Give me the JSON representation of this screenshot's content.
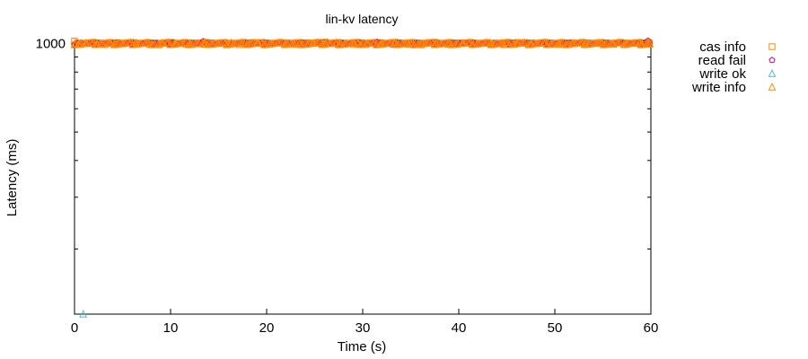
{
  "chart_data": {
    "type": "scatter",
    "title": "lin-kv latency",
    "xlabel": "Time (s)",
    "ylabel": "Latency (ms)",
    "xlim": [
      0,
      60
    ],
    "y_scale": "log",
    "ylim": [
      120,
      1100
    ],
    "x_ticks": [
      0,
      10,
      20,
      30,
      40,
      50,
      60
    ],
    "y_ticks": [
      1000
    ],
    "legend_position": "outside-top-right",
    "grid": false,
    "series": [
      {
        "name": "cas info",
        "marker": "square",
        "color": "#ff8c00",
        "band": [
          990,
          1010
        ],
        "x": [
          0.0,
          0.7,
          1.8,
          3.2,
          4.5,
          6.1,
          7.4,
          8.8,
          10.1,
          11.6,
          13.0,
          14.3,
          15.9,
          17.2,
          18.6,
          20.0,
          21.4,
          22.9,
          24.3,
          25.7,
          26.1,
          27.4,
          28.9,
          30.3,
          31.8,
          33.2,
          34.6,
          36.1,
          37.5,
          38.9,
          40.4,
          41.8,
          43.2,
          44.7,
          46.1,
          47.5,
          49.0,
          50.4,
          51.8,
          53.3,
          54.7,
          56.1,
          57.6,
          59.0,
          59.8
        ],
        "y": [
          1020,
          995,
          1005,
          992,
          1008,
          996,
          1003,
          990,
          1010,
          994,
          1006,
          998,
          1002,
          991,
          1009,
          997,
          1004,
          993,
          1007,
          999,
          1012,
          995,
          1005,
          992,
          1008,
          996,
          1003,
          990,
          1010,
          994,
          1006,
          998,
          1002,
          991,
          1009,
          997,
          1004,
          993,
          1007,
          999,
          1001,
          995,
          1005,
          992,
          1008
        ]
      },
      {
        "name": "read fail",
        "marker": "pentagon",
        "color": "#e0007a",
        "band": [
          993,
          1006
        ],
        "x": [
          0.3,
          1.5,
          2.9,
          4.2,
          5.8,
          7.1,
          8.5,
          9.9,
          11.3,
          12.7,
          13.4,
          14.9,
          16.3,
          17.8,
          19.2,
          20.6,
          22.0,
          23.5,
          24.9,
          26.3,
          27.8,
          29.2,
          30.6,
          31.5,
          33.0,
          34.4,
          35.8,
          37.3,
          38.7,
          40.1,
          41.6,
          43.0,
          44.4,
          45.9,
          47.3,
          48.7,
          50.2,
          51.6,
          53.0,
          54.5,
          55.9,
          57.3,
          58.8,
          59.7
        ],
        "y": [
          1000,
          997,
          1003,
          995,
          1001,
          998,
          1004,
          996,
          1002,
          999,
          1018,
          997,
          1003,
          995,
          1001,
          998,
          1004,
          996,
          1002,
          999,
          1000,
          997,
          1003,
          1012,
          995,
          1001,
          998,
          1004,
          996,
          1002,
          999,
          1000,
          997,
          1003,
          995,
          1001,
          998,
          1004,
          996,
          1002,
          999,
          1000,
          997,
          1022
        ]
      },
      {
        "name": "write ok",
        "marker": "triangle",
        "color": "#56b4e9",
        "x": [
          0.9
        ],
        "y": [
          120
        ]
      },
      {
        "name": "write info",
        "marker": "triangle",
        "color": "#ff8c00",
        "band": [
          992,
          1008
        ],
        "x": [
          0.1,
          0.5,
          1.2,
          2.4,
          3.7,
          5.0,
          6.4,
          7.8,
          9.2,
          10.6,
          12.0,
          13.5,
          14.9,
          16.3,
          17.7,
          19.1,
          20.6,
          22.0,
          23.4,
          24.8,
          26.2,
          27.7,
          29.1,
          30.5,
          31.9,
          33.3,
          34.8,
          36.2,
          37.6,
          39.0,
          40.4,
          41.9,
          43.3,
          44.7,
          46.1,
          47.5,
          49.0,
          50.4,
          51.8,
          53.2,
          54.6,
          56.1,
          57.5,
          58.9,
          59.9
        ],
        "y": [
          1003,
          998,
          1005,
          994,
          1001,
          997,
          1006,
          993,
          1002,
          999,
          1004,
          995,
          1000,
          1007,
          996,
          1003,
          998,
          1005,
          994,
          1001,
          997,
          1006,
          993,
          1002,
          999,
          1004,
          995,
          1000,
          1007,
          996,
          1003,
          998,
          1005,
          994,
          1001,
          997,
          1006,
          993,
          1002,
          999,
          1004,
          995,
          1000,
          1007,
          996
        ]
      }
    ]
  }
}
